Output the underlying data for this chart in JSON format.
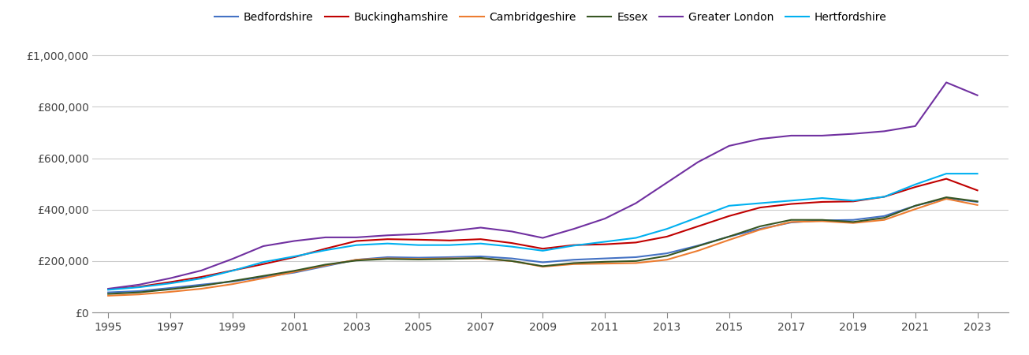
{
  "series": {
    "Bedfordshire": {
      "color": "#4472C4",
      "years": [
        1995,
        1996,
        1997,
        1998,
        1999,
        2000,
        2001,
        2002,
        2003,
        2004,
        2005,
        2006,
        2007,
        2008,
        2009,
        2010,
        2011,
        2012,
        2013,
        2014,
        2015,
        2016,
        2017,
        2018,
        2019,
        2020,
        2021,
        2022,
        2023
      ],
      "values": [
        78000,
        83000,
        95000,
        108000,
        120000,
        138000,
        155000,
        180000,
        205000,
        215000,
        213000,
        215000,
        218000,
        210000,
        195000,
        205000,
        210000,
        215000,
        230000,
        260000,
        295000,
        325000,
        350000,
        358000,
        360000,
        375000,
        415000,
        445000,
        430000
      ]
    },
    "Buckinghamshire": {
      "color": "#C00000",
      "years": [
        1995,
        1996,
        1997,
        1998,
        1999,
        2000,
        2001,
        2002,
        2003,
        2004,
        2005,
        2006,
        2007,
        2008,
        2009,
        2010,
        2011,
        2012,
        2013,
        2014,
        2015,
        2016,
        2017,
        2018,
        2019,
        2020,
        2021,
        2022,
        2023
      ],
      "values": [
        90000,
        100000,
        118000,
        138000,
        163000,
        188000,
        215000,
        248000,
        278000,
        285000,
        283000,
        280000,
        285000,
        270000,
        248000,
        262000,
        265000,
        272000,
        295000,
        335000,
        375000,
        408000,
        422000,
        430000,
        432000,
        450000,
        488000,
        520000,
        475000
      ]
    },
    "Cambridgeshire": {
      "color": "#ED7D31",
      "years": [
        1995,
        1996,
        1997,
        1998,
        1999,
        2000,
        2001,
        2002,
        2003,
        2004,
        2005,
        2006,
        2007,
        2008,
        2009,
        2010,
        2011,
        2012,
        2013,
        2014,
        2015,
        2016,
        2017,
        2018,
        2019,
        2020,
        2021,
        2022,
        2023
      ],
      "values": [
        65000,
        70000,
        80000,
        92000,
        110000,
        133000,
        158000,
        183000,
        205000,
        210000,
        208000,
        210000,
        210000,
        200000,
        178000,
        188000,
        190000,
        192000,
        205000,
        240000,
        282000,
        322000,
        352000,
        355000,
        348000,
        360000,
        402000,
        442000,
        418000
      ]
    },
    "Essex": {
      "color": "#375623",
      "years": [
        1995,
        1996,
        1997,
        1998,
        1999,
        2000,
        2001,
        2002,
        2003,
        2004,
        2005,
        2006,
        2007,
        2008,
        2009,
        2010,
        2011,
        2012,
        2013,
        2014,
        2015,
        2016,
        2017,
        2018,
        2019,
        2020,
        2021,
        2022,
        2023
      ],
      "values": [
        72000,
        78000,
        90000,
        103000,
        122000,
        142000,
        162000,
        186000,
        202000,
        208000,
        206000,
        208000,
        212000,
        200000,
        180000,
        192000,
        197000,
        200000,
        220000,
        258000,
        295000,
        335000,
        360000,
        360000,
        352000,
        368000,
        415000,
        448000,
        432000
      ]
    },
    "Greater London": {
      "color": "#7030A0",
      "years": [
        1995,
        1996,
        1997,
        1998,
        1999,
        2000,
        2001,
        2002,
        2003,
        2004,
        2005,
        2006,
        2007,
        2008,
        2009,
        2010,
        2011,
        2012,
        2013,
        2014,
        2015,
        2016,
        2017,
        2018,
        2019,
        2020,
        2021,
        2022,
        2023
      ],
      "values": [
        92000,
        108000,
        133000,
        163000,
        208000,
        258000,
        278000,
        292000,
        292000,
        300000,
        305000,
        316000,
        330000,
        315000,
        290000,
        325000,
        365000,
        425000,
        505000,
        585000,
        648000,
        675000,
        688000,
        688000,
        695000,
        705000,
        725000,
        895000,
        845000
      ]
    },
    "Hertfordshire": {
      "color": "#00B0F0",
      "years": [
        1995,
        1996,
        1997,
        1998,
        1999,
        2000,
        2001,
        2002,
        2003,
        2004,
        2005,
        2006,
        2007,
        2008,
        2009,
        2010,
        2011,
        2012,
        2013,
        2014,
        2015,
        2016,
        2017,
        2018,
        2019,
        2020,
        2021,
        2022,
        2023
      ],
      "values": [
        88000,
        98000,
        113000,
        132000,
        162000,
        196000,
        218000,
        242000,
        262000,
        268000,
        262000,
        262000,
        268000,
        256000,
        240000,
        260000,
        275000,
        290000,
        325000,
        370000,
        415000,
        425000,
        435000,
        445000,
        435000,
        450000,
        498000,
        540000,
        540000
      ]
    }
  },
  "ylim": [
    0,
    1050000
  ],
  "yticks": [
    0,
    200000,
    400000,
    600000,
    800000,
    1000000
  ],
  "ytick_labels": [
    "£0",
    "£200,000",
    "£400,000",
    "£600,000",
    "£800,000",
    "£1,000,000"
  ],
  "xticks": [
    1995,
    1997,
    1999,
    2001,
    2003,
    2005,
    2007,
    2009,
    2011,
    2013,
    2015,
    2017,
    2019,
    2021,
    2023
  ],
  "xlim": [
    1994.5,
    2024.0
  ],
  "background_color": "#FFFFFF",
  "grid_color": "#CCCCCC",
  "legend_order": [
    "Bedfordshire",
    "Buckinghamshire",
    "Cambridgeshire",
    "Essex",
    "Greater London",
    "Hertfordshire"
  ]
}
